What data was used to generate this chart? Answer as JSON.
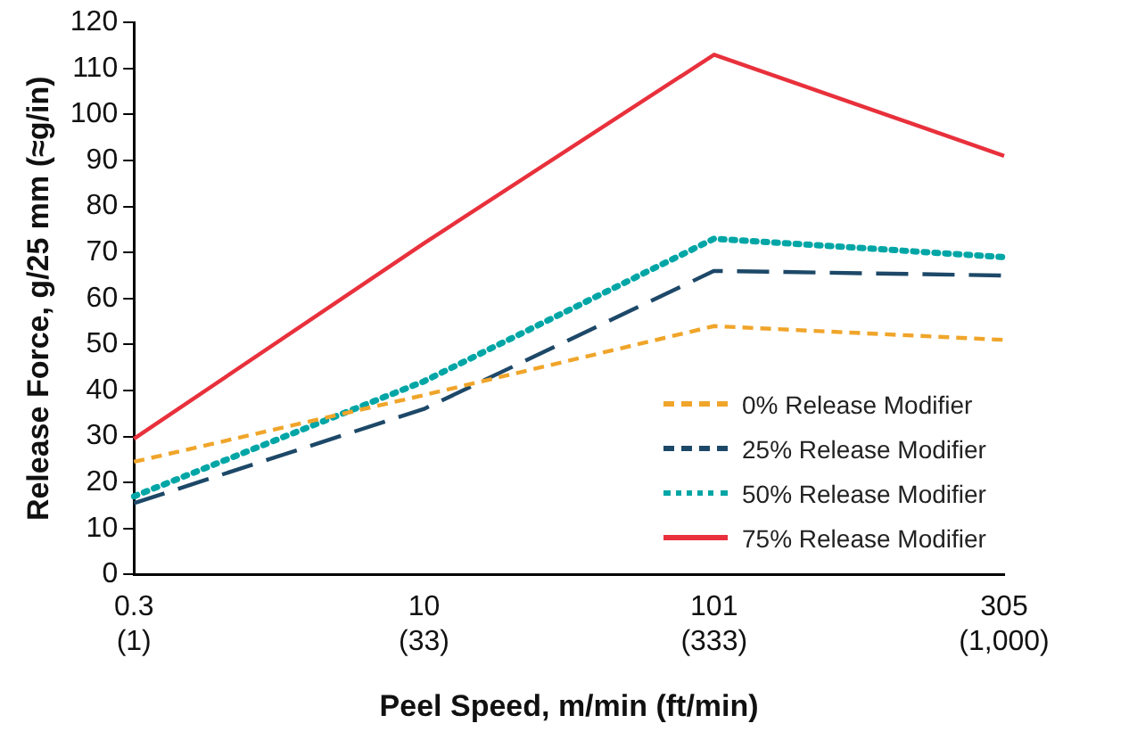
{
  "chart_data": {
    "type": "line",
    "xlabel": "Peel Speed, m/min (ft/min)",
    "ylabel": "Release Force, g/25 mm (≈g/in)",
    "categories": [
      "0.3\n(1)",
      "10\n(33)",
      "101\n(333)",
      "305\n(1,000)"
    ],
    "ylim": [
      0,
      120
    ],
    "yticks": [
      0,
      10,
      20,
      30,
      40,
      50,
      60,
      70,
      80,
      90,
      100,
      110,
      120
    ],
    "grid": false,
    "legend": "bottom right",
    "marker": "none",
    "series": [
      {
        "name": "0% Release Modifier",
        "color": "#f0a52a",
        "line_style": "dashed",
        "values": [
          24.5,
          39,
          54,
          51
        ]
      },
      {
        "name": "25% Release Modifier",
        "color": "#1d4868",
        "line_style": "dashed",
        "values": [
          15.5,
          36,
          66,
          65
        ]
      },
      {
        "name": "50% Release Modifier",
        "color": "#00a6a6",
        "line_style": "dotted",
        "values": [
          17,
          42,
          73,
          69
        ]
      },
      {
        "name": "75% Release Modifier",
        "color": "#e8313c",
        "line_style": "solid",
        "values": [
          29.5,
          72,
          113,
          91
        ]
      }
    ]
  }
}
